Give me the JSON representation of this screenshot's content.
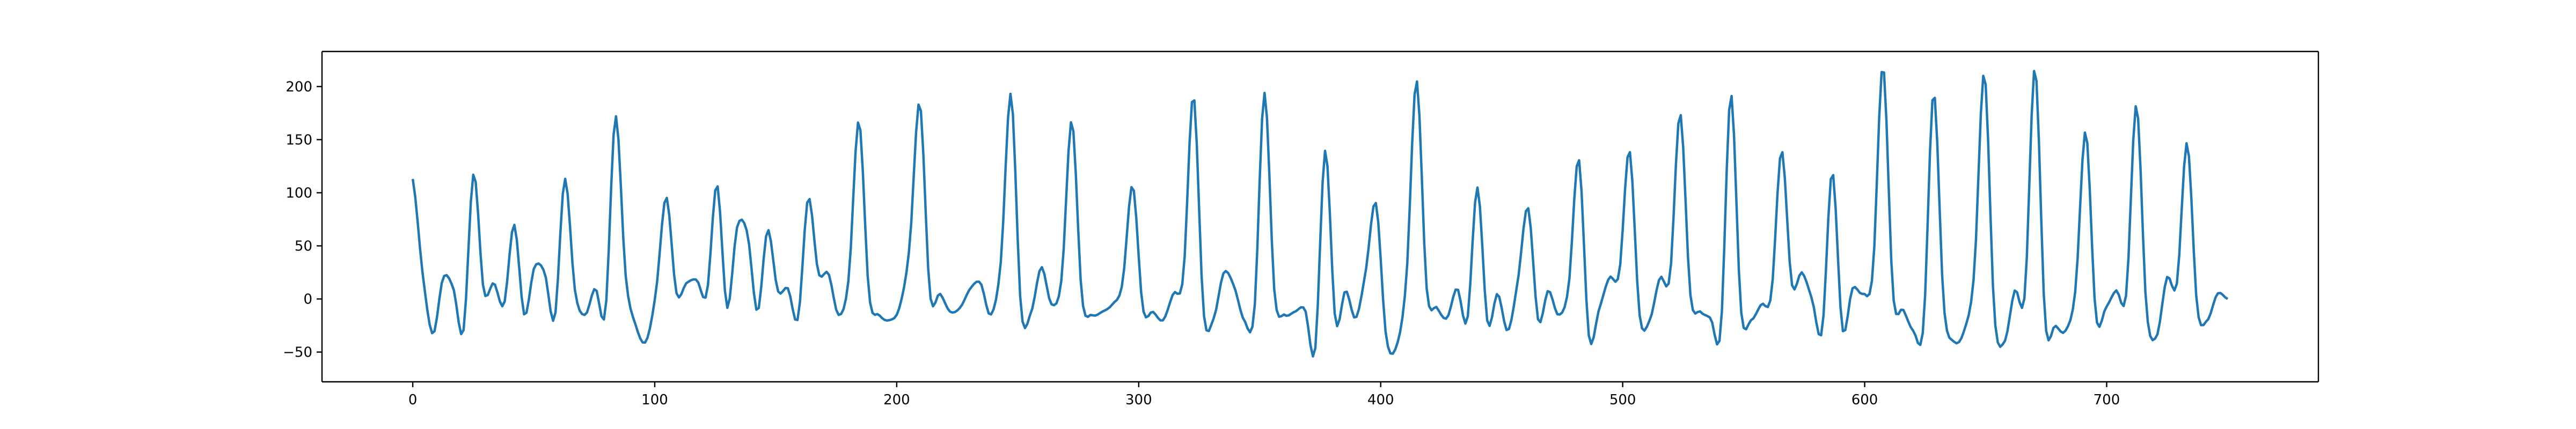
{
  "chart_data": {
    "type": "line",
    "title": "",
    "xlabel": "",
    "ylabel": "",
    "xlim": [
      -37.5,
      787.5
    ],
    "ylim": [
      -78,
      233
    ],
    "x_ticks": [
      0,
      100,
      200,
      300,
      400,
      500,
      600,
      700
    ],
    "y_ticks": [
      -50,
      0,
      50,
      100,
      150,
      200
    ],
    "grid": false,
    "legend": "none",
    "line_color": "#1f77b4",
    "series": [
      {
        "values": [
          113,
          22,
          -33,
          20,
          10,
          -30,
          118,
          8,
          15,
          -5,
          70,
          -15,
          30,
          25,
          -18,
          113,
          8,
          -15,
          10,
          -12,
          172,
          22,
          -25,
          -40,
          8,
          96,
          6,
          15,
          18,
          5,
          108,
          -8,
          68,
          62,
          -12,
          65,
          8,
          10,
          -18,
          95,
          25,
          24,
          -15,
          20,
          168,
          5,
          -15,
          -20,
          -8,
          50,
          185,
          6,
          5,
          -12,
          -8,
          10,
          15,
          -15,
          35,
          193,
          -10,
          -12,
          30,
          -5,
          20,
          168,
          2,
          -15,
          -12,
          -5,
          15,
          107,
          -8,
          -12,
          -20,
          5,
          22,
          192,
          -12,
          -18,
          25,
          12,
          -20,
          -12,
          194,
          5,
          -15,
          -12,
          -10,
          -48,
          140,
          -20,
          8,
          -18,
          27,
          90,
          -35,
          -45,
          20,
          206,
          10,
          -8,
          -18,
          10,
          -20,
          105,
          -22,
          5,
          -30,
          18,
          86,
          -20,
          8,
          -15,
          12,
          132,
          -35,
          -10,
          20,
          25,
          140,
          -15,
          -20,
          20,
          22,
          175,
          5,
          -12,
          -18,
          -30,
          193,
          -10,
          -20,
          -5,
          5,
          140,
          15,
          25,
          0,
          -30,
          120,
          -28,
          10,
          5,
          25,
          220,
          5,
          -10,
          -30,
          -25,
          195,
          -5,
          -40,
          -30,
          25,
          213,
          -15,
          -40,
          8,
          5,
          218,
          -20,
          -25,
          -30,
          10,
          158,
          -15,
          -8,
          8,
          5,
          183,
          -10,
          -35,
          20,
          15,
          147,
          -8,
          -20,
          5,
          0
        ]
      }
    ]
  }
}
